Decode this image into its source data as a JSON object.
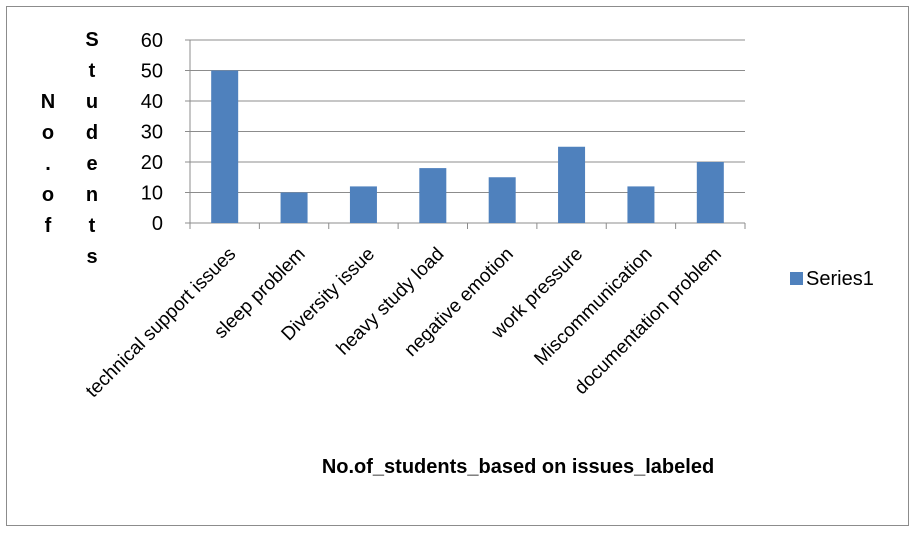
{
  "chart_data": {
    "type": "bar",
    "categories": [
      "technical support issues",
      "sleep problem",
      "Diversity issue",
      "heavy study load",
      "negative emotion",
      "work pressure",
      "Miscommunication",
      "documentation problem"
    ],
    "series": [
      {
        "name": "Series1",
        "values": [
          50,
          10,
          12,
          18,
          15,
          25,
          12,
          20
        ],
        "color": "#4f81bd"
      }
    ],
    "title": "",
    "xlabel": "No.of_students_based on issues_labeled",
    "ylabel_left": [
      "N",
      "o",
      ".",
      "o",
      "f"
    ],
    "ylabel_right": [
      "S",
      "t",
      "u",
      "d",
      "e",
      "n",
      "t",
      "s"
    ],
    "ylim": [
      0,
      60
    ],
    "yticks": [
      0,
      10,
      20,
      30,
      40,
      50,
      60
    ],
    "grid": true,
    "legend": "right",
    "gridline_color": "#8c8c8c"
  }
}
